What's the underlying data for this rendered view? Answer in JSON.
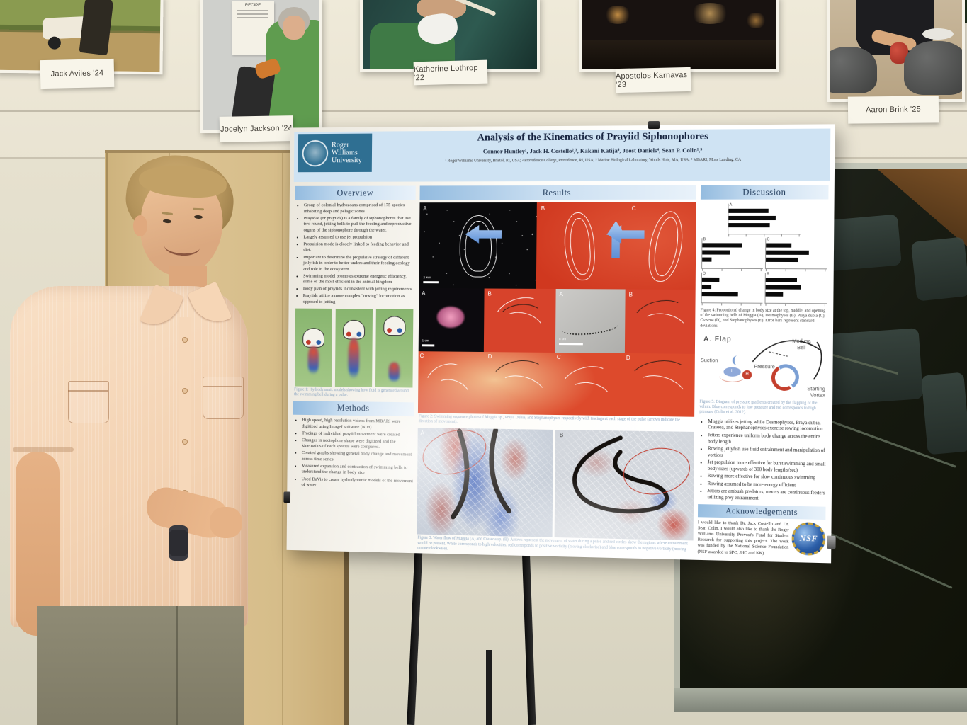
{
  "scene": {
    "wall_photo_labels": [
      "Jack Aviles '24",
      "Jocelyn Jackson '24",
      "Katherine Lothrop '22",
      "Apostolos Karnavas '23",
      "Aaron Brink '25"
    ],
    "recipe_note": "RECIPE"
  },
  "poster": {
    "logo": {
      "line1": "Roger Williams",
      "line2": "University"
    },
    "title": "Analysis of the Kinematics of Prayiid Siphonophores",
    "authors": "Connor Huntley¹, Jack H. Costello²,³, Kakani Katija⁴, Joost Daniels⁴, Sean P. Colin¹,³",
    "affiliations": "¹ Roger Williams University, Bristol, RI, USA;  ² Providence College, Providence, RI, USA;  ³ Marine Biological Laboratory, Woods Hole, MA, USA;  ⁴ MBARI, Moss Landing, CA",
    "overview": {
      "title": "Overview",
      "bullets": [
        "Group of colonial hydrozoans comprised of 175 species inhabiting deep and pelagic zones",
        "Prayidae (or prayiids) is a family of siphonophores that use two round, jetting bells to pull the feeding and reproductive organs of the siphonophore through the water.",
        "Largely assumed to use jet propulsion",
        "Propulsion mode is closely linked to feeding behavior and diet.",
        "Important to determine the propulsive strategy of different jellyfish in order to better understand their feeding ecology and role in the ecosystem.",
        "Swimming model promotes extreme energetic efficiency, some of the most efficient in the animal kingdom",
        "Body plan of prayiids inconsistent with jetting requirements",
        "Prayiids utilize a more complex \"rowing\" locomotion as opposed to jetting"
      ]
    },
    "figure1_caption": "Figure 1: Hydrodynamic models showing how fluid is generated around the swimming bell during a pulse.",
    "methods": {
      "title": "Methods",
      "bullets": [
        "High speed, high resolution videos from MBARI were digitized using ImageJ software (NIH)",
        "Tracings of individual prayiid movement were created",
        "Changes in nectophore shape were digitized and the kinematics of each species were compared.",
        "Created graphs showing general body change and movement across time series.",
        "Measured expansion and contraction of swimming bells to understand the change in body size",
        "Used DaVis to create hydrodynamic models of the movement of water"
      ]
    },
    "results": {
      "title": "Results",
      "figure2": {
        "letters_row1": [
          "A",
          "B",
          "C"
        ],
        "letters_row2": [
          "A",
          "B",
          "A",
          "B"
        ],
        "letters_row3": [
          "C",
          "D",
          "C",
          "D"
        ],
        "scale_labels": [
          "2 mm",
          "1 cm",
          "5 cm"
        ],
        "caption": "Figure 2: Swimming sequence photos of Muggia sp., Praya Dubia, and Stephanophyses respectively with tracings at each stage of the pulse (arrows indicate the direction of movement)."
      },
      "figure3": {
        "letters": [
          "A",
          "B"
        ],
        "caption": "Figure 3: Water flow of Muggia (A) and Craseoa sp. (B). Arrows represent the movement of water during a pulse and red circles show the regions where entrainment would be present. White corresponds to high velocities, red corresponds to positive vorticity (moving clockwise) and blue corresponds to negative vorticity (moving counterclockwise)."
      }
    },
    "discussion": {
      "title": "Discussion",
      "figure4_caption": "Figure 4: Proportional change in body size at the top, middle, and opening of the swimming bells of Muggia (A), Desmophyses (B), Praya dubia (C), Craseoa (D), and Stephanophyses (E). Error bars represent standard deviations.",
      "figure5": {
        "title": "A. Flap",
        "labels": {
          "suction": "Suction",
          "pressure": "Pressure",
          "medusa_bell": "Medusa Bell",
          "starting_vortex": "Starting Vortex",
          "low": "L",
          "high": "H"
        },
        "caption": "Figure 5: Diagram of pressure gradients created by the flapping of the velum. Blue corresponds to low pressure and red corresponds to high pressure (Colin et al. 2012)."
      },
      "bullets": [
        "Muggia utilizes jetting while Desmophyses, Praya dubia, Craseoa, and Stephanophyses exercise rowing locomotion",
        "Jetters experience uniform body change across the entire body length",
        "Rowing jellyfish use fluid entrainment and manipulation of vortices",
        "Jet propulsion more effective for burst swimming and small body sizes (upwards of 300 body lengths/sec)",
        "Rowing more effective for slow continuous swimming",
        "Rowing assumed to be more energy efficient",
        "Jetters are ambush predators, rowers are continuous feeders utilizing prey entrainment."
      ]
    },
    "acknowledgements": {
      "title": "Acknowledgements",
      "text": "I would like to thank Dr. Jack Costello and Dr. Sean Colin. I would also like to thank the Roger Williams University Provost's Fund for Student Research for supporting this project. The work was funded by the National Science Foundation (NSF awarded to SPC, JHC and KK).",
      "nsf_label": "NSF"
    }
  },
  "chart_data": {
    "type": "bar",
    "title": "Figure 4: Proportional change in body size (top, middle, opening of swimming bell)",
    "categories": [
      "Top",
      "Middle",
      "Opening"
    ],
    "panels": [
      {
        "panel": "A",
        "species": "Muggia",
        "values": [
          62,
          74,
          65
        ]
      },
      {
        "panel": "B",
        "species": "Desmophyses",
        "values": [
          75,
          52,
          17
        ]
      },
      {
        "panel": "C",
        "species": "Praya dubia",
        "values": [
          48,
          80,
          60
        ]
      },
      {
        "panel": "D",
        "species": "Craseoa",
        "values": [
          33,
          18,
          68
        ]
      },
      {
        "panel": "E",
        "species": "Stephanophyses",
        "values": [
          58,
          65,
          32
        ]
      }
    ],
    "note": "Bar values are relative lengths (0-100) estimated from the photo; axis tick labels are not legible.",
    "legend_position": "none",
    "grid": false
  },
  "colors": {
    "poster_header_blue": "#cfe3f3",
    "section_band_blue": "#93bbdf",
    "results_red": "#d7432b",
    "arrow_blue": "#5d8fd6",
    "rwu_logo_blue": "#2f6f92",
    "nsf_blue": "#2b5ea8",
    "nsf_gold": "#c9a53f",
    "wall_cream": "#ebe6d5",
    "door_wood": "#d6bd8a"
  }
}
